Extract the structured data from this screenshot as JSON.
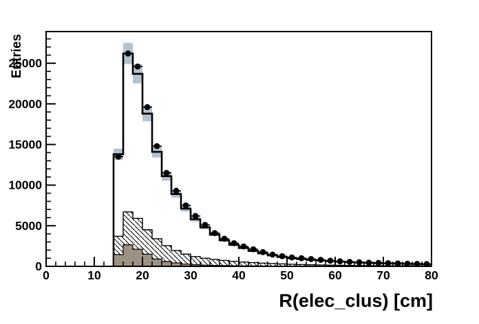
{
  "chart_data": {
    "type": "histogram",
    "title": "",
    "xlabel": "R(elec_clus) [cm]",
    "ylabel": "Entries",
    "xlim": [
      0,
      80
    ],
    "ylim": [
      0,
      28900
    ],
    "grid": false,
    "legend": null,
    "x_major_ticks": [
      0,
      10,
      20,
      30,
      40,
      50,
      60,
      70,
      80
    ],
    "x_tick_labels": [
      "0",
      "10",
      "20",
      "30",
      "40",
      "50",
      "60",
      "70",
      "80"
    ],
    "x_minor_step": 2,
    "y_major_ticks": [
      0,
      5000,
      10000,
      15000,
      20000,
      25000
    ],
    "y_tick_labels": [
      "0",
      "5000",
      "10000",
      "15000",
      "20000",
      "25000"
    ],
    "y_minor_step": 1000,
    "bins": {
      "start": 14,
      "width": 2,
      "count": 33
    },
    "colors": {
      "frame": "#000000",
      "band": "#b4c2d2",
      "mc_line": "#000000",
      "mc_fill": "#ffffff",
      "hatch_line": "#000000",
      "solid_fill": "#9d9183",
      "marker": "#000000",
      "background": "#ffffff"
    },
    "series": [
      {
        "name": "syst-uncertainty-band",
        "type": "band",
        "style": "filled-rect-per-bin",
        "relative_half_width": 0.05,
        "follows": "total-mc-histogram"
      },
      {
        "name": "total-mc-histogram",
        "type": "step",
        "style": "thick-black-outline-white-fill",
        "values": [
          13800,
          26200,
          23700,
          18800,
          14100,
          11100,
          8900,
          7100,
          5800,
          4800,
          3900,
          3200,
          2650,
          2250,
          1900,
          1600,
          1350,
          1150,
          1000,
          900,
          800,
          720,
          650,
          580,
          520,
          470,
          430,
          400,
          370,
          340,
          310,
          290,
          270
        ]
      },
      {
        "name": "background-hatched",
        "type": "step",
        "style": "diagonal-hatch-fill",
        "values": [
          3700,
          6700,
          5900,
          4500,
          3400,
          2550,
          1950,
          1500,
          1200,
          1000,
          850,
          720,
          620,
          530,
          460,
          400,
          350,
          300,
          260,
          230,
          200,
          175,
          150,
          130,
          115,
          100,
          90,
          80,
          70,
          60,
          55,
          50,
          45
        ]
      },
      {
        "name": "background-solid",
        "type": "step",
        "style": "solid-brown-fill",
        "values": [
          1450,
          2650,
          2100,
          1500,
          900,
          600,
          420,
          280,
          200,
          155,
          120,
          95,
          75,
          60,
          50,
          42,
          36,
          30,
          26,
          22,
          20,
          18,
          16,
          14,
          12,
          11,
          10,
          9,
          8,
          8,
          7,
          7,
          6
        ]
      },
      {
        "name": "data-points",
        "type": "points",
        "style": "black-filled-circle-with-error-bars",
        "bin_centers": [
          15,
          17,
          19,
          21,
          23,
          25,
          27,
          29,
          31,
          33,
          35,
          37,
          39,
          41,
          43,
          45,
          47,
          49,
          51,
          53,
          55,
          57,
          59,
          61,
          63,
          65,
          67,
          69,
          71,
          73,
          75,
          77,
          79
        ],
        "values": [
          13500,
          26200,
          24600,
          19600,
          14800,
          11500,
          9300,
          7500,
          6200,
          5100,
          4100,
          3400,
          2850,
          2450,
          2100,
          1750,
          1450,
          1250,
          1100,
          1000,
          900,
          800,
          700,
          620,
          550,
          500,
          450,
          420,
          390,
          360,
          330,
          300,
          280
        ]
      }
    ]
  }
}
